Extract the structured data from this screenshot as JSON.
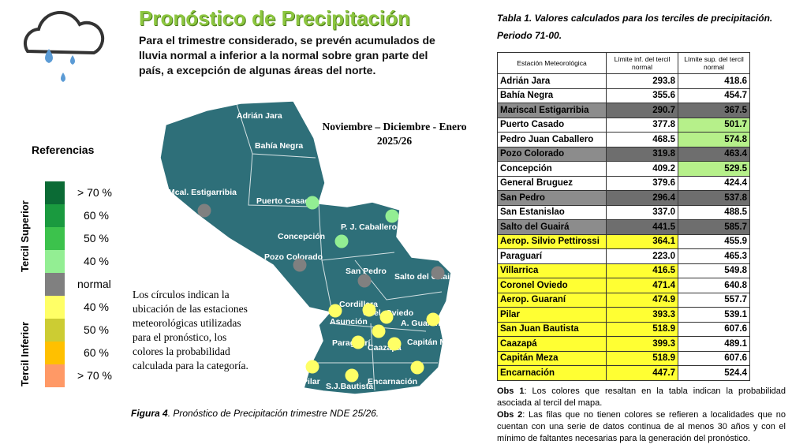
{
  "header": {
    "title": "Pronóstico de Precipitación",
    "summary": [
      "Para el trimestre considerado, se prevén acumulados de",
      "lluvia normal a inferior a la normal sobre gran parte del",
      "país, a excepción de algunas áreas del norte."
    ]
  },
  "legend": {
    "title": "Referencias",
    "upper_label": "Tercil Superior",
    "lower_label": "Tercil Inferior",
    "items": [
      {
        "label": "> 70 %",
        "color": "#0b6b35"
      },
      {
        "label": "60 %",
        "color": "#1a9a3f"
      },
      {
        "label": "50 %",
        "color": "#3cc24c"
      },
      {
        "label": "40 %",
        "color": "#93ee93"
      },
      {
        "label": "normal",
        "color": "#808080"
      },
      {
        "label": "40 %",
        "color": "#ffff66"
      },
      {
        "label": "50 %",
        "color": "#cccc33"
      },
      {
        "label": "60 %",
        "color": "#ffc000"
      },
      {
        "label": "> 70 %",
        "color": "#ff9966"
      }
    ]
  },
  "map": {
    "period": [
      "Noviembre – Diciembre - Enero",
      "2025/26"
    ],
    "labels": [
      "Adrián Jara",
      "Bahía Negra",
      "Mcal. Estigarribia",
      "Puerto Casado",
      "Concepción",
      "P. J. Caballero",
      "Pozo Colorado",
      "San Pedro",
      "Salto del Guairá",
      "Cordillera",
      "Asunción",
      "Cnel. Oviedo",
      "A. Guaraní",
      "Paraguarí",
      "Caazapá",
      "Capitán Meza",
      "Pilar",
      "S.J.Bautista",
      "Encarnación"
    ],
    "points": [
      "#93ee93",
      "#93ee93",
      "#93ee93",
      "#808080",
      "#808080",
      "#808080",
      "#808080",
      "#ffff66",
      "#ffff66",
      "#ffff66",
      "#ffff66",
      "#ffff66",
      "#ffff66",
      "#ffff66",
      "#ffff66",
      "#ffff66",
      "#ffff66"
    ],
    "note": [
      "Los círculos indican la",
      "ubicación de las estaciones",
      "meteorológicas utilizadas",
      "para el pronóstico, los",
      "colores la probabilidad",
      "calculada para la categoría."
    ],
    "caption_label": "Figura 4",
    "caption": ". Pronóstico de Precipitación trimestre NDE 25/26."
  },
  "table": {
    "caption": [
      "Tabla 1. Valores calculados para los terciles de precipitación.",
      "Periodo 71-00."
    ],
    "headers": [
      "Estación Meteorológica",
      "Límite inf. del tercil normal",
      "Límite sup. del tercil normal"
    ],
    "rows": [
      {
        "cells": [
          "Adrián Jara",
          "293.8",
          "418.6"
        ],
        "fill": [
          null,
          null,
          null
        ]
      },
      {
        "cells": [
          "Bahía Negra",
          "355.6",
          "454.7"
        ],
        "fill": [
          null,
          null,
          null
        ]
      },
      {
        "cells": [
          "Mariscal Estigarribia",
          "290.7",
          "367.5"
        ],
        "fill": [
          "#8c8c8c",
          "#6e6e6e",
          "#6e6e6e"
        ]
      },
      {
        "cells": [
          "Puerto Casado",
          "377.8",
          "501.7"
        ],
        "fill": [
          null,
          null,
          "#b6f08a"
        ]
      },
      {
        "cells": [
          "Pedro Juan Caballero",
          "468.5",
          "574.8"
        ],
        "fill": [
          null,
          null,
          "#b6f08a"
        ]
      },
      {
        "cells": [
          "Pozo Colorado",
          "319.8",
          "463.4"
        ],
        "fill": [
          "#8c8c8c",
          "#6e6e6e",
          "#6e6e6e"
        ]
      },
      {
        "cells": [
          "Concepción",
          "409.2",
          "529.5"
        ],
        "fill": [
          null,
          null,
          "#b6f08a"
        ]
      },
      {
        "cells": [
          "General Bruguez",
          "379.6",
          "424.4"
        ],
        "fill": [
          null,
          null,
          null
        ]
      },
      {
        "cells": [
          "San Pedro",
          "296.4",
          "537.8"
        ],
        "fill": [
          "#8c8c8c",
          "#6e6e6e",
          "#6e6e6e"
        ]
      },
      {
        "cells": [
          "San Estanislao",
          "337.0",
          "488.5"
        ],
        "fill": [
          null,
          null,
          null
        ]
      },
      {
        "cells": [
          "Salto del Guairá",
          "441.5",
          "585.7"
        ],
        "fill": [
          "#8c8c8c",
          "#6e6e6e",
          "#6e6e6e"
        ]
      },
      {
        "cells": [
          "Aerop. Silvio Pettirossi",
          "364.1",
          "455.9"
        ],
        "fill": [
          "#ffff33",
          "#ffff33",
          null
        ]
      },
      {
        "cells": [
          "Paraguarí",
          "223.0",
          "465.3"
        ],
        "fill": [
          null,
          null,
          null
        ]
      },
      {
        "cells": [
          "Villarrica",
          "416.5",
          "549.8"
        ],
        "fill": [
          "#ffff33",
          "#ffff33",
          null
        ]
      },
      {
        "cells": [
          "Coronel Oviedo",
          "471.4",
          "640.8"
        ],
        "fill": [
          "#ffff33",
          "#ffff33",
          null
        ]
      },
      {
        "cells": [
          "Aerop. Guaraní",
          "474.9",
          "557.7"
        ],
        "fill": [
          "#ffff33",
          "#ffff33",
          null
        ]
      },
      {
        "cells": [
          "Pilar",
          "393.3",
          "539.1"
        ],
        "fill": [
          "#ffff33",
          "#ffff33",
          null
        ]
      },
      {
        "cells": [
          "San Juan Bautista",
          "518.9",
          "607.6"
        ],
        "fill": [
          "#ffff33",
          "#ffff33",
          null
        ]
      },
      {
        "cells": [
          "Caazapá",
          "399.3",
          "489.1"
        ],
        "fill": [
          "#ffff33",
          "#ffff33",
          null
        ]
      },
      {
        "cells": [
          "Capitán Meza",
          "518.9",
          "607.6"
        ],
        "fill": [
          "#ffff33",
          "#ffff33",
          null
        ]
      },
      {
        "cells": [
          "Encarnación",
          "447.7",
          "524.4"
        ],
        "fill": [
          "#ffff33",
          "#ffff33",
          null
        ]
      }
    ]
  },
  "notes": [
    {
      "label": "Obs 1",
      "text": ": Los colores que resaltan en la tabla indican la probabilidad asociada al tercil del mapa."
    },
    {
      "label": "Obs 2",
      "text": ": Las filas que no tienen colores se refieren a localidades que no cuentan con una serie de datos continua de al menos 30 años y con el mínimo de faltantes necesarias para la generación del pronóstico."
    }
  ]
}
